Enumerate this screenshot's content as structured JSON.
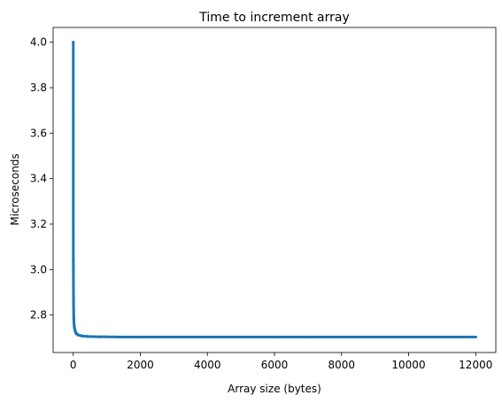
{
  "chart_data": {
    "type": "scatter",
    "title": "Time to increment array",
    "xlabel": "Array size (bytes)",
    "ylabel": "Microseconds",
    "xlim": [
      -600,
      12600
    ],
    "ylim": [
      2.635,
      4.065
    ],
    "xticks": [
      0,
      2000,
      4000,
      6000,
      8000,
      10000,
      12000
    ],
    "xtick_labels": [
      "0",
      "2000",
      "4000",
      "6000",
      "8000",
      "10000",
      "12000"
    ],
    "yticks": [
      2.8,
      3.0,
      3.2,
      3.4,
      3.6,
      3.8,
      4.0
    ],
    "ytick_labels": [
      "2.8",
      "3.0",
      "3.2",
      "3.4",
      "3.6",
      "3.8",
      "4.0"
    ],
    "grid": false,
    "marker_color": "#1f77b4",
    "series": [
      {
        "points": [
          [
            1,
            4.0
          ],
          [
            2,
            3.2
          ],
          [
            3,
            3.04
          ],
          [
            4,
            3.02
          ],
          [
            5,
            3.0
          ],
          [
            6,
            2.93
          ],
          [
            7,
            2.9
          ],
          [
            8,
            2.88
          ],
          [
            9,
            2.86
          ],
          [
            10,
            2.84
          ],
          [
            12,
            2.82
          ],
          [
            14,
            2.8
          ],
          [
            16,
            2.79
          ],
          [
            18,
            2.78
          ],
          [
            20,
            2.77
          ],
          [
            25,
            2.76
          ],
          [
            30,
            2.75
          ],
          [
            35,
            2.745
          ],
          [
            40,
            2.74
          ],
          [
            50,
            2.735
          ],
          [
            60,
            2.73
          ],
          [
            70,
            2.725
          ],
          [
            80,
            2.72
          ],
          [
            100,
            2.718
          ],
          [
            120,
            2.715
          ],
          [
            150,
            2.712
          ],
          [
            200,
            2.71
          ],
          [
            250,
            2.708
          ],
          [
            300,
            2.707
          ],
          [
            400,
            2.706
          ],
          [
            500,
            2.705
          ],
          [
            600,
            2.705
          ],
          [
            800,
            2.704
          ],
          [
            1000,
            2.704
          ],
          [
            1500,
            2.703
          ],
          [
            2000,
            2.703
          ],
          [
            3000,
            2.703
          ],
          [
            4000,
            2.703
          ],
          [
            5000,
            2.703
          ],
          [
            6000,
            2.703
          ],
          [
            7000,
            2.703
          ],
          [
            8000,
            2.703
          ],
          [
            9000,
            2.703
          ],
          [
            10000,
            2.703
          ],
          [
            11000,
            2.703
          ],
          [
            12000,
            2.703
          ]
        ]
      }
    ]
  }
}
